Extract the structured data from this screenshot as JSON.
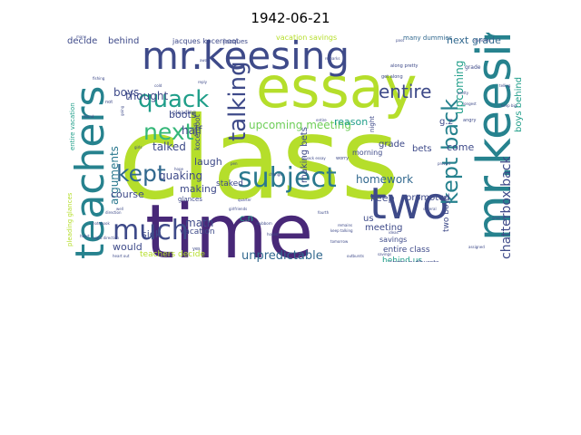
{
  "title": "1942-06-21",
  "wordcloud": {
    "palette": "viridis",
    "words": [
      {
        "text": "class",
        "color": "#b5de2b"
      },
      {
        "text": "time",
        "color": "#482878"
      },
      {
        "text": "essay",
        "color": "#b5de2b"
      },
      {
        "text": "mr.keesing",
        "color": "#3e4a89"
      },
      {
        "text": "teachers",
        "color": "#26828e"
      },
      {
        "text": "mr.keesing",
        "color": "#26828e"
      },
      {
        "text": "two",
        "color": "#3e4a89"
      },
      {
        "text": "much",
        "color": "#3e4a89"
      },
      {
        "text": "subject",
        "color": "#2a788e"
      },
      {
        "text": "quack",
        "color": "#1f9e89"
      },
      {
        "text": "kept",
        "color": "#31688e"
      },
      {
        "text": "next",
        "color": "#35b779"
      },
      {
        "text": "talking",
        "color": "#3e4a89"
      },
      {
        "text": "entire",
        "color": "#3e4a89"
      },
      {
        "text": "kept back",
        "color": "#26828e"
      },
      {
        "text": "chatterbox.back",
        "color": "#3e4a89"
      },
      {
        "text": "unpredictable",
        "color": "#31688e"
      },
      {
        "text": "homework",
        "color": "#31688e"
      },
      {
        "text": "upcoming meeting",
        "color": "#6ece58"
      },
      {
        "text": "next grade",
        "color": "#31688e"
      },
      {
        "text": "jacques kocernoot",
        "color": "#3e4a89"
      },
      {
        "text": "behind",
        "color": "#3e4a89"
      },
      {
        "text": "vacation savings",
        "color": "#b5de2b"
      },
      {
        "text": "many dummies",
        "color": "#31688e"
      },
      {
        "text": "arguments",
        "color": "#2a788e"
      },
      {
        "text": "thought",
        "color": "#3e4a89"
      },
      {
        "text": "talked",
        "color": "#3e4a89"
      },
      {
        "text": "boots",
        "color": "#3e4a89"
      },
      {
        "text": "quaking",
        "color": "#3e4a89"
      },
      {
        "text": "laugh",
        "color": "#3e4a89"
      },
      {
        "text": "course",
        "color": "#3e4a89"
      },
      {
        "text": "making",
        "color": "#3e4a89"
      },
      {
        "text": "math",
        "color": "#3e4a89"
      },
      {
        "text": "would",
        "color": "#3e4a89"
      },
      {
        "text": "sick",
        "color": "#3e4a89"
      },
      {
        "text": "teachers decide",
        "color": "#b5de2b"
      },
      {
        "text": "behind us",
        "color": "#1f9e89"
      },
      {
        "text": "entire class",
        "color": "#3e4a89"
      },
      {
        "text": "keep",
        "color": "#3e4a89"
      },
      {
        "text": "promoted",
        "color": "#3e4a89"
      },
      {
        "text": "meeting",
        "color": "#3e4a89"
      },
      {
        "text": "grade",
        "color": "#3e4a89"
      },
      {
        "text": "reason",
        "color": "#1f9e89"
      },
      {
        "text": "bets",
        "color": "#3e4a89"
      },
      {
        "text": "making bets",
        "color": "#3e4a89"
      },
      {
        "text": "staked",
        "color": "#3e4a89"
      },
      {
        "text": "g.z",
        "color": "#3e4a89"
      },
      {
        "text": "come",
        "color": "#3e4a89"
      },
      {
        "text": "two boys",
        "color": "#3e4a89"
      },
      {
        "text": "upcoming",
        "color": "#1f9e89"
      },
      {
        "text": "boys behind",
        "color": "#1f9e89"
      },
      {
        "text": "boys",
        "color": "#3e4a89"
      },
      {
        "text": "half",
        "color": "#3e4a89"
      },
      {
        "text": "decide",
        "color": "#3e4a89"
      },
      {
        "text": "entire vacation",
        "color": "#1f9e89"
      },
      {
        "text": "pleading glances",
        "color": "#b5de2b"
      },
      {
        "text": "glances",
        "color": "#3e4a89"
      },
      {
        "text": "vacation",
        "color": "#3e4a89"
      },
      {
        "text": "c.n",
        "color": "#1f9e89"
      },
      {
        "text": "us",
        "color": "#3e4a89"
      },
      {
        "text": "savings",
        "color": "#3e4a89"
      },
      {
        "text": "angry outbursts",
        "color": "#3e4a89"
      },
      {
        "text": "morning",
        "color": "#3e4a89"
      },
      {
        "text": "kocernoot",
        "color": "#3e4a89"
      },
      {
        "text": "pleading",
        "color": "#3e4a89"
      },
      {
        "text": "even",
        "color": "#3e4a89"
      },
      {
        "text": "along pretty",
        "color": "#3e4a89"
      },
      {
        "text": "get along",
        "color": "#3e4a89"
      },
      {
        "text": "jacques",
        "color": "#3e4a89"
      },
      {
        "text": "grade",
        "color": "#3e4a89"
      },
      {
        "text": "night",
        "color": "#3e4a89"
      },
      {
        "text": "worry",
        "color": "#3e4a89"
      },
      {
        "text": "angry",
        "color": "#3e4a89"
      },
      {
        "text": "assigned",
        "color": "#3e4a89"
      },
      {
        "text": "outbursts",
        "color": "#3e4a89"
      },
      {
        "text": "longest",
        "color": "#3e4a89"
      },
      {
        "text": "pretty",
        "color": "#3e4a89"
      },
      {
        "text": "heart",
        "color": "#3e4a89"
      },
      {
        "text": "dummies",
        "color": "#3e4a89"
      },
      {
        "text": "many",
        "color": "#3e4a89"
      },
      {
        "text": "not",
        "color": "#3e4a89"
      },
      {
        "text": "entire",
        "color": "#3e4a89"
      },
      {
        "text": "change",
        "color": "#3e4a89"
      },
      {
        "text": "keep talking",
        "color": "#3e4a89"
      },
      {
        "text": "quarter",
        "color": "#3e4a89"
      },
      {
        "text": "direction",
        "color": "#3e4a89"
      },
      {
        "text": "yes",
        "color": "#3e4a89"
      },
      {
        "text": "girls",
        "color": "#3e4a89"
      },
      {
        "text": "going",
        "color": "#3e4a89"
      },
      {
        "text": "telling",
        "color": "#3e4a89"
      },
      {
        "text": "notebook",
        "color": "#3e4a89"
      },
      {
        "text": "pass",
        "color": "#3e4a89"
      },
      {
        "text": "well",
        "color": "#3e4a89"
      },
      {
        "text": "hope",
        "color": "#3e4a89"
      },
      {
        "text": "away",
        "color": "#3e4a89"
      },
      {
        "text": "reply",
        "color": "#3e4a89"
      },
      {
        "text": "pen",
        "color": "#3e4a89"
      },
      {
        "text": "fishing",
        "color": "#3e4a89"
      },
      {
        "text": "tomorrow",
        "color": "#3e4a89"
      },
      {
        "text": "stubborn",
        "color": "#3e4a89"
      },
      {
        "text": "hoped",
        "color": "#3e4a89"
      },
      {
        "text": "remains",
        "color": "#3e4a89"
      },
      {
        "text": "found",
        "color": "#3e4a89"
      },
      {
        "text": "keep big",
        "color": "#3e4a89"
      },
      {
        "text": "heart out",
        "color": "#3e4a89"
      },
      {
        "text": "night direction",
        "color": "#3e4a89"
      },
      {
        "text": "quack essay",
        "color": "#3e4a89"
      },
      {
        "text": "fourth",
        "color": "#3e4a89"
      },
      {
        "text": "proved",
        "color": "#3e4a89"
      },
      {
        "text": "girlfriends",
        "color": "#3e4a89"
      },
      {
        "text": "ideas",
        "color": "#3e4a89"
      },
      {
        "text": "smiling",
        "color": "#3e4a89"
      },
      {
        "text": "cold",
        "color": "#3e4a89"
      },
      {
        "text": "remarks",
        "color": "#3e4a89"
      },
      {
        "text": "several",
        "color": "#3e4a89"
      },
      {
        "text": "savings",
        "color": "#3e4a89"
      }
    ]
  }
}
